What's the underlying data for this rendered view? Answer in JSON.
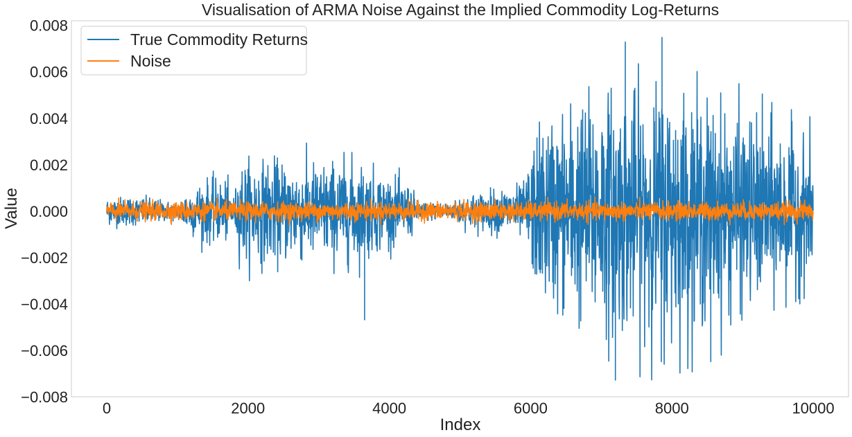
{
  "chart_data": {
    "type": "line",
    "title": "Visualisation of ARMA Noise Against the Implied Commodity Log-Returns",
    "xlabel": "Index",
    "ylabel": "Value",
    "xlim": [
      -500,
      10500
    ],
    "ylim": [
      -0.008,
      0.0082
    ],
    "xticks": [
      0,
      2000,
      4000,
      6000,
      8000,
      10000
    ],
    "xtick_labels": [
      "0",
      "2000",
      "4000",
      "6000",
      "8000",
      "10000"
    ],
    "yticks": [
      -0.008,
      -0.006,
      -0.004,
      -0.002,
      0.0,
      0.002,
      0.004,
      0.006,
      0.008
    ],
    "ytick_labels": [
      "−0.008",
      "−0.006",
      "−0.004",
      "−0.002",
      "0.000",
      "0.002",
      "0.004",
      "0.006",
      "0.008"
    ],
    "grid": false,
    "legend_position": "top-left",
    "series": [
      {
        "name": "True Commodity Returns",
        "color": "#1f77b4",
        "num_points": 10000,
        "amplitude_envelope": {
          "x": [
            0,
            300,
            600,
            1000,
            1100,
            1400,
            1700,
            1800,
            1900,
            2500,
            3000,
            3500,
            4000,
            4300,
            4400,
            4900,
            5000,
            5500,
            5900,
            6100,
            6500,
            7000,
            7500,
            8000,
            8500,
            9000,
            9500,
            10000
          ],
          "max_abs": [
            0.0008,
            0.0009,
            0.0008,
            0.0005,
            0.0012,
            0.0019,
            0.0018,
            0.0009,
            0.003,
            0.003,
            0.0029,
            0.0031,
            0.0021,
            0.0016,
            0.0006,
            0.0005,
            0.0009,
            0.0013,
            0.0016,
            0.005,
            0.0062,
            0.0073,
            0.0071,
            0.0075,
            0.0065,
            0.0058,
            0.0052,
            0.004
          ]
        },
        "spikes": [
          {
            "x": 3650,
            "y": -0.0047
          },
          {
            "x": 7200,
            "y": -0.0073
          },
          {
            "x": 7340,
            "y": 0.0073
          },
          {
            "x": 7860,
            "y": 0.0075
          },
          {
            "x": 7850,
            "y": -0.0065
          },
          {
            "x": 8550,
            "y": -0.0065
          }
        ]
      },
      {
        "name": "Noise",
        "color": "#ff7f0e",
        "num_points": 10000,
        "max_abs": 0.0006
      }
    ]
  }
}
